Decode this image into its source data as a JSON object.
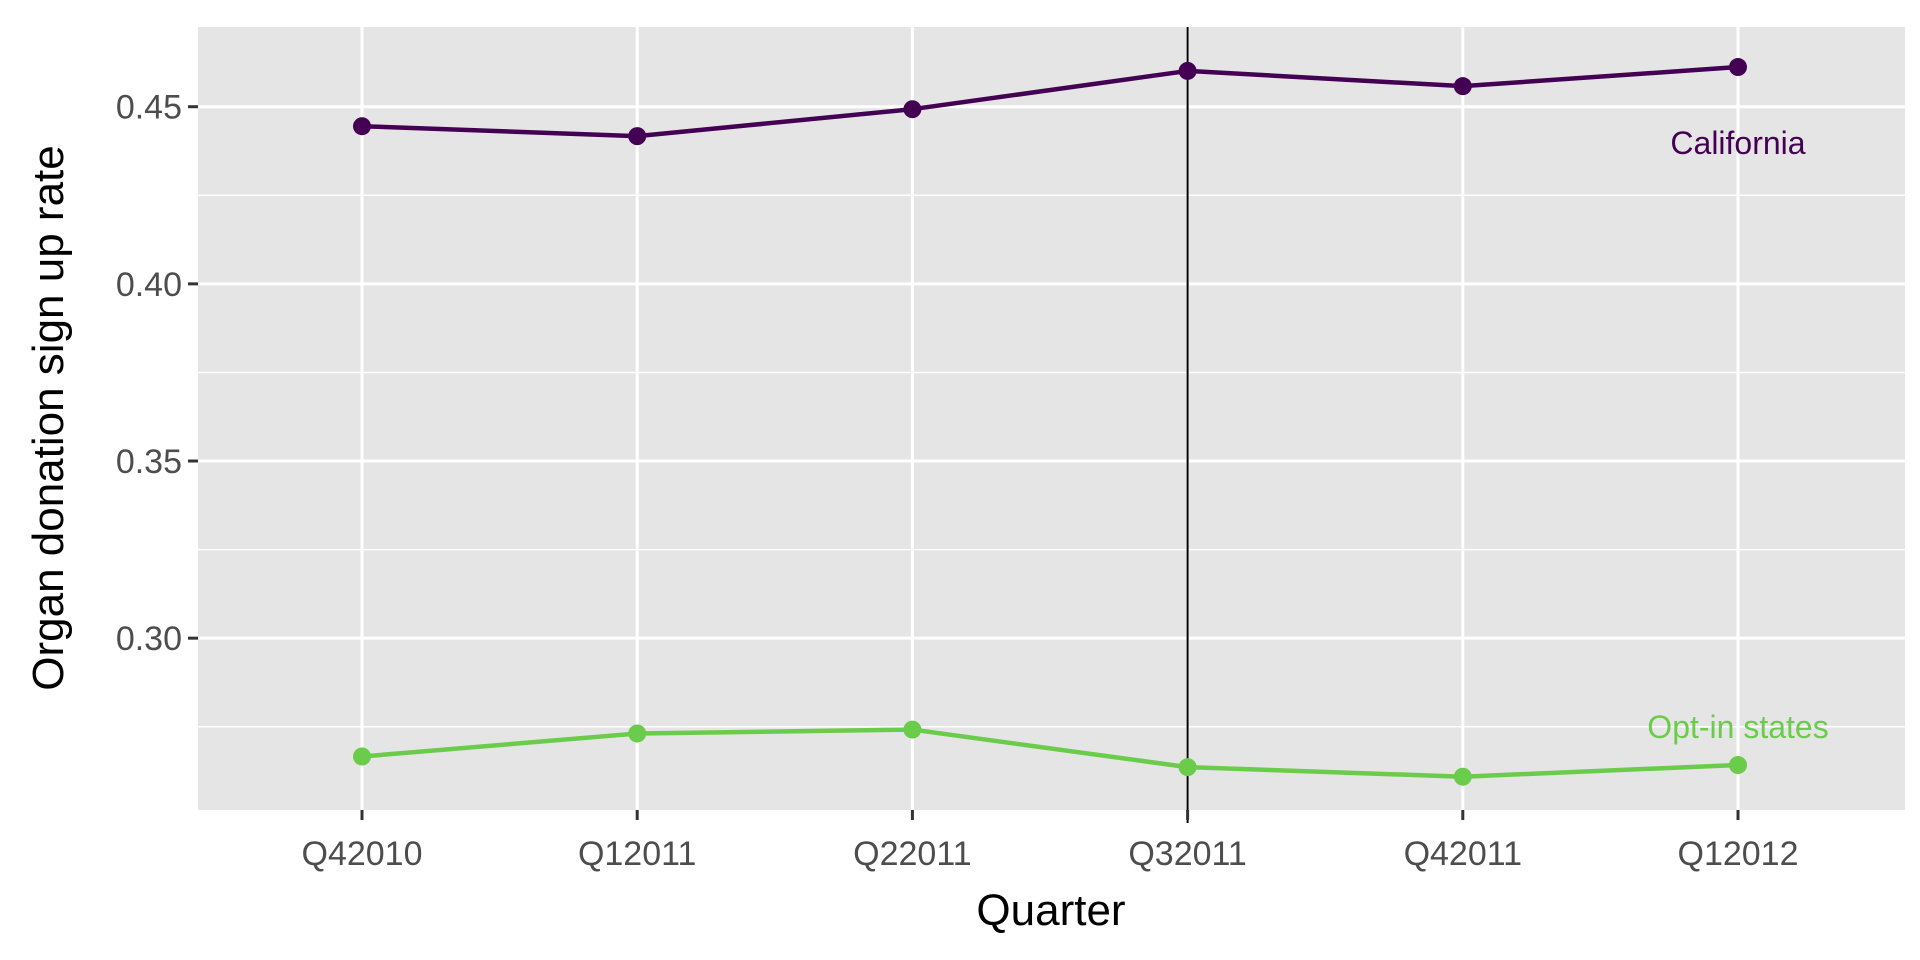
{
  "chart_data": {
    "type": "line",
    "title": "",
    "xlabel": "Quarter",
    "ylabel": "Organ donation sign up rate",
    "categories": [
      "Q42010",
      "Q12011",
      "Q22011",
      "Q32011",
      "Q42011",
      "Q12012"
    ],
    "series": [
      {
        "name": "California",
        "color": "#440154",
        "values": [
          0.4445,
          0.4417,
          0.4493,
          0.4601,
          0.4558,
          0.4612
        ]
      },
      {
        "name": "Opt-in states",
        "color": "#6ACC4A",
        "values": [
          0.2666,
          0.2731,
          0.2742,
          0.2636,
          0.2609,
          0.2642
        ]
      }
    ],
    "ylim": [
      0.2515,
      0.4725
    ],
    "yticks": [
      0.3,
      0.35,
      0.4,
      0.45
    ],
    "ytick_labels": [
      "0.30",
      "0.35",
      "0.40",
      "0.45"
    ],
    "vertical_reference_line": "Q32011",
    "grid": true,
    "background": "#E5E5E5",
    "legend": "none"
  }
}
